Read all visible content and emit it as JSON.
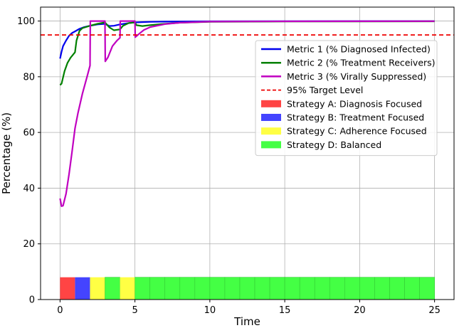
{
  "chart_data": {
    "type": "line",
    "title": "",
    "xlabel": "Time",
    "ylabel": "Percentage (%)",
    "xlim": [
      -1.3,
      26.3
    ],
    "ylim": [
      0,
      105
    ],
    "xticks": [
      0,
      5,
      10,
      15,
      20,
      25
    ],
    "yticks": [
      0,
      20,
      40,
      60,
      80,
      100
    ],
    "grid": true,
    "legend_position": "upper right",
    "series": [
      {
        "name": "Metric 1 (% Diagnosed Infected)",
        "color": "#0000ee",
        "style": "solid",
        "points": [
          [
            0,
            86.5
          ],
          [
            0.1,
            89
          ],
          [
            0.2,
            91
          ],
          [
            0.4,
            93
          ],
          [
            0.6,
            94.7
          ],
          [
            0.8,
            95.7
          ],
          [
            1,
            96.3
          ],
          [
            1.3,
            97.2
          ],
          [
            1.6,
            97.8
          ],
          [
            2,
            98.3
          ],
          [
            2.5,
            98.8
          ],
          [
            3,
            99
          ],
          [
            3.3,
            98.2
          ],
          [
            3.6,
            98.3
          ],
          [
            4,
            98.8
          ],
          [
            4.5,
            99.2
          ],
          [
            5,
            99.5
          ],
          [
            6,
            99.7
          ],
          [
            7,
            99.8
          ],
          [
            8,
            99.85
          ],
          [
            10,
            99.9
          ],
          [
            15,
            99.95
          ],
          [
            25,
            99.97
          ]
        ]
      },
      {
        "name": "Metric 2 (% Treatment Receivers)",
        "color": "#008000",
        "style": "solid",
        "points": [
          [
            0,
            77
          ],
          [
            0.1,
            77.5
          ],
          [
            0.3,
            82
          ],
          [
            0.5,
            85
          ],
          [
            0.7,
            86.8
          ],
          [
            1,
            88.8
          ],
          [
            1.1,
            93
          ],
          [
            1.3,
            96.5
          ],
          [
            1.5,
            97.5
          ],
          [
            2,
            98.3
          ],
          [
            2.5,
            99
          ],
          [
            3,
            99.5
          ],
          [
            3.3,
            97.7
          ],
          [
            3.6,
            96.7
          ],
          [
            4,
            97
          ],
          [
            4.2,
            98.3
          ],
          [
            4.6,
            99.3
          ],
          [
            5,
            99.5
          ],
          [
            5.1,
            98.5
          ],
          [
            5.5,
            98.2
          ],
          [
            6,
            98.5
          ],
          [
            7,
            99
          ],
          [
            8,
            99.4
          ],
          [
            10,
            99.7
          ],
          [
            15,
            99.85
          ],
          [
            25,
            99.9
          ]
        ]
      },
      {
        "name": "Metric 3 (% Virally Suppressed)",
        "color": "#c000c0",
        "style": "solid",
        "points": [
          [
            0,
            36.3
          ],
          [
            0.1,
            33.5
          ],
          [
            0.2,
            33.7
          ],
          [
            0.4,
            38
          ],
          [
            0.6,
            45
          ],
          [
            0.8,
            53
          ],
          [
            1,
            61.5
          ],
          [
            1.2,
            67
          ],
          [
            1.5,
            74
          ],
          [
            1.8,
            80
          ],
          [
            2,
            84
          ],
          [
            2.02,
            100
          ],
          [
            3,
            100
          ],
          [
            3.02,
            85.5
          ],
          [
            3.2,
            87
          ],
          [
            3.5,
            91
          ],
          [
            3.8,
            93
          ],
          [
            4,
            94
          ],
          [
            4.02,
            100
          ],
          [
            5,
            100
          ],
          [
            5.02,
            94.2
          ],
          [
            5.3,
            95.5
          ],
          [
            5.6,
            96.8
          ],
          [
            6,
            97.8
          ],
          [
            7,
            98.9
          ],
          [
            8,
            99.4
          ],
          [
            10,
            99.8
          ],
          [
            15,
            99.9
          ],
          [
            25,
            99.95
          ]
        ]
      },
      {
        "name": "95% Target Level",
        "color": "#ee0000",
        "style": "dashed",
        "y": 95
      }
    ],
    "strategy_blocks": {
      "height": 8,
      "items": [
        {
          "start": 0,
          "end": 1,
          "strategy": "A"
        },
        {
          "start": 1,
          "end": 2,
          "strategy": "B"
        },
        {
          "start": 2,
          "end": 3,
          "strategy": "C"
        },
        {
          "start": 3,
          "end": 4,
          "strategy": "D"
        },
        {
          "start": 4,
          "end": 5,
          "strategy": "C"
        },
        {
          "start": 5,
          "end": 6,
          "strategy": "D"
        },
        {
          "start": 6,
          "end": 7,
          "strategy": "D"
        },
        {
          "start": 7,
          "end": 8,
          "strategy": "D"
        },
        {
          "start": 8,
          "end": 9,
          "strategy": "D"
        },
        {
          "start": 9,
          "end": 10,
          "strategy": "D"
        },
        {
          "start": 10,
          "end": 11,
          "strategy": "D"
        },
        {
          "start": 11,
          "end": 12,
          "strategy": "D"
        },
        {
          "start": 12,
          "end": 13,
          "strategy": "D"
        },
        {
          "start": 13,
          "end": 14,
          "strategy": "D"
        },
        {
          "start": 14,
          "end": 15,
          "strategy": "D"
        },
        {
          "start": 15,
          "end": 16,
          "strategy": "D"
        },
        {
          "start": 16,
          "end": 17,
          "strategy": "D"
        },
        {
          "start": 17,
          "end": 18,
          "strategy": "D"
        },
        {
          "start": 18,
          "end": 19,
          "strategy": "D"
        },
        {
          "start": 19,
          "end": 20,
          "strategy": "D"
        },
        {
          "start": 20,
          "end": 21,
          "strategy": "D"
        },
        {
          "start": 21,
          "end": 22,
          "strategy": "D"
        },
        {
          "start": 22,
          "end": 23,
          "strategy": "D"
        },
        {
          "start": 23,
          "end": 24,
          "strategy": "D"
        },
        {
          "start": 24,
          "end": 25,
          "strategy": "D"
        }
      ]
    },
    "strategies": [
      {
        "key": "A",
        "name": "Strategy A: Diagnosis Focused",
        "color": "#ff4444"
      },
      {
        "key": "B",
        "name": "Strategy B: Treatment Focused",
        "color": "#4444ff"
      },
      {
        "key": "C",
        "name": "Strategy C: Adherence Focused",
        "color": "#ffff44"
      },
      {
        "key": "D",
        "name": "Strategy D: Balanced",
        "color": "#44ff44"
      }
    ]
  }
}
